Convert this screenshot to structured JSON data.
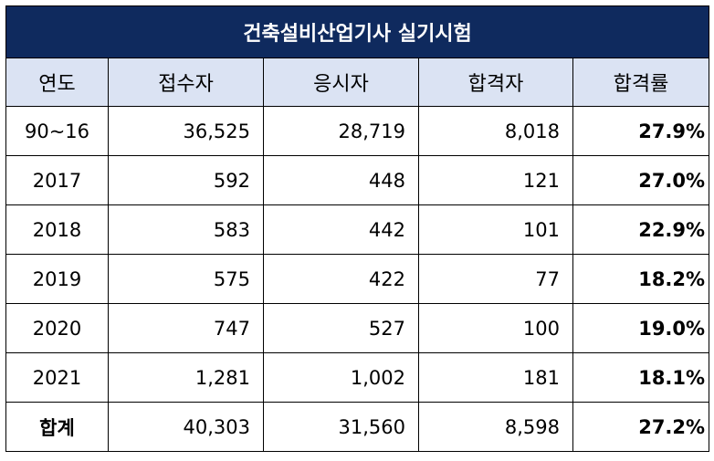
{
  "title": "건축설비산업기사 실기시험",
  "headers": [
    "연도",
    "접수자",
    "응시자",
    "합격자",
    "합격률"
  ],
  "rows": [
    {
      "year": "90~16",
      "applicants": "36,525",
      "examinees": "28,719",
      "passers": "8,018",
      "rate": "27.9%"
    },
    {
      "year": "2017",
      "applicants": "592",
      "examinees": "448",
      "passers": "121",
      "rate": "27.0%"
    },
    {
      "year": "2018",
      "applicants": "583",
      "examinees": "442",
      "passers": "101",
      "rate": "22.9%"
    },
    {
      "year": "2019",
      "applicants": "575",
      "examinees": "422",
      "passers": "77",
      "rate": "18.2%"
    },
    {
      "year": "2020",
      "applicants": "747",
      "examinees": "527",
      "passers": "100",
      "rate": "19.0%"
    },
    {
      "year": "2021",
      "applicants": "1,281",
      "examinees": "1,002",
      "passers": "181",
      "rate": "18.1%"
    },
    {
      "year": "합계",
      "applicants": "40,303",
      "examinees": "31,560",
      "passers": "8,598",
      "rate": "27.2%"
    }
  ],
  "colors": {
    "title_bg": "#0f2a5e",
    "header_bg": "#dbe3f3",
    "title_text": "#ffffff",
    "border": "#000000"
  }
}
